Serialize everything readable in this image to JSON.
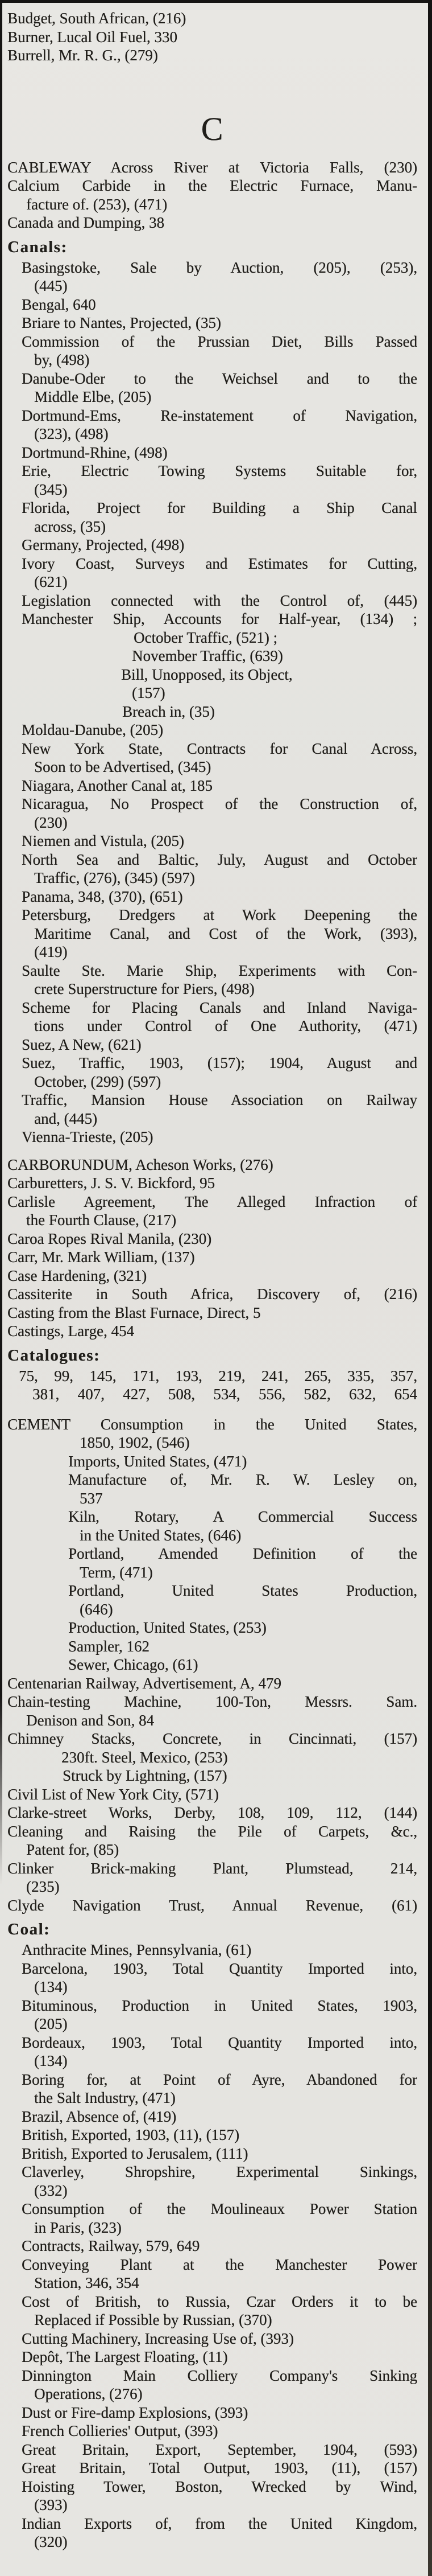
{
  "page": {
    "background": "#e5e4e0",
    "ink": "#201e1a",
    "edge_color": "#161514"
  },
  "blocks": [
    {
      "type": "entries",
      "name": "index-entries-bu",
      "lines": [
        {
          "i": 13,
          "t": "Budget, South African, (216)"
        },
        {
          "i": 13,
          "t": "Burner, Lucal Oil Fuel, 330"
        },
        {
          "i": 13,
          "t": "Burrell, Mr. R. G., (279)"
        }
      ]
    },
    {
      "type": "letter",
      "text": "C"
    },
    {
      "type": "entries",
      "name": "index-entries-ca",
      "lines": [
        {
          "i": 13,
          "t": "CABLEWAY Across River at Victoria Falls, (230)",
          "j": 1
        },
        {
          "i": 13,
          "t": "Calcium Carbide in the Electric Furnace, Manu-",
          "j": 1
        },
        {
          "i": 46,
          "t": "facture of. (253), (471)"
        },
        {
          "i": 13,
          "t": "Canada and Dumping, 38"
        }
      ]
    },
    {
      "type": "subheading",
      "text": "Canals:"
    },
    {
      "type": "entries",
      "name": "canals-entries",
      "lines": [
        {
          "i": 38,
          "t": "Basingstoke, Sale by Auction, (205), (253),",
          "j": 1
        },
        {
          "i": 60,
          "t": "(445)"
        },
        {
          "i": 38,
          "t": "Bengal, 640"
        },
        {
          "i": 38,
          "t": "Briare to Nantes, Projected, (35)"
        },
        {
          "i": 38,
          "t": "Commission of the Prussian Diet, Bills Passed",
          "j": 1
        },
        {
          "i": 60,
          "t": "by, (498)"
        },
        {
          "i": 38,
          "t": "Danube-Oder to the Weichsel and to the",
          "j": 1
        },
        {
          "i": 60,
          "t": "Middle Elbe, (205)"
        },
        {
          "i": 38,
          "t": "Dortmund-Ems, Re-instatement of Navigation,",
          "j": 1
        },
        {
          "i": 60,
          "t": "(323), (498)"
        },
        {
          "i": 38,
          "t": "Dortmund-Rhine, (498)"
        },
        {
          "i": 38,
          "t": "Erie, Electric Towing Systems Suitable for,",
          "j": 1
        },
        {
          "i": 60,
          "t": "(345)"
        },
        {
          "i": 38,
          "t": "Florida, Project for Building a Ship Canal",
          "j": 1
        },
        {
          "i": 60,
          "t": "across, (35)"
        },
        {
          "i": 38,
          "t": "Germany, Projected, (498)"
        },
        {
          "i": 38,
          "t": "Ivory Coast, Surveys and Estimates for Cutting,",
          "j": 1
        },
        {
          "i": 60,
          "t": "(621)"
        },
        {
          "i": 38,
          "t": "Legislation connected with the Control of, (445)",
          "j": 1
        },
        {
          "i": 38,
          "t": "Manchester Ship, Accounts for Half-year, (134) ;",
          "j": 1
        },
        {
          "i": 235,
          "t": "October Traffic, (521) ;"
        },
        {
          "i": 232,
          "t": "November Traffic, (639)"
        },
        {
          "i": 213,
          "t": "Bill, Unopposed, its Object,"
        },
        {
          "i": 232,
          "t": "(157)"
        },
        {
          "i": 215,
          "t": "Breach in, (35)"
        },
        {
          "i": 38,
          "t": "Moldau-Danube, (205)"
        },
        {
          "i": 38,
          "t": "New York State, Contracts for Canal Across,",
          "j": 1
        },
        {
          "i": 60,
          "t": "Soon to be Advertised, (345)"
        },
        {
          "i": 38,
          "t": "Niagara, Another Canal at, 185"
        },
        {
          "i": 38,
          "t": "Nicaragua, No Prospect of the Construction of,",
          "j": 1
        },
        {
          "i": 60,
          "t": "(230)"
        },
        {
          "i": 38,
          "t": "Niemen and Vistula, (205)"
        },
        {
          "i": 38,
          "t": "North Sea and Baltic, July, August and October",
          "j": 1
        },
        {
          "i": 60,
          "t": "Traffic, (276), (345) (597)"
        },
        {
          "i": 38,
          "t": "Panama, 348, (370), (651)"
        },
        {
          "i": 38,
          "t": "Petersburg, Dredgers at Work Deepening the",
          "j": 1
        },
        {
          "i": 60,
          "t": "Maritime Canal, and Cost of the Work, (393),",
          "j": 1
        },
        {
          "i": 60,
          "t": "(419)"
        },
        {
          "i": 38,
          "t": "Saulte Ste. Marie Ship, Experiments with Con-",
          "j": 1
        },
        {
          "i": 60,
          "t": "crete Superstructure for Piers, (498)"
        },
        {
          "i": 38,
          "t": "Scheme for Placing Canals and Inland Naviga-",
          "j": 1
        },
        {
          "i": 60,
          "t": "tions under Control of One Authority, (471)",
          "j": 1
        },
        {
          "i": 38,
          "t": "Suez, A New, (621)"
        },
        {
          "i": 38,
          "t": "Suez, Traffic, 1903, (157); 1904, August and",
          "j": 1
        },
        {
          "i": 60,
          "t": "October, (299) (597)"
        },
        {
          "i": 38,
          "t": "Traffic, Mansion House Association on Railway",
          "j": 1
        },
        {
          "i": 60,
          "t": "and, (445)"
        },
        {
          "i": 38,
          "t": "Vienna-Trieste, (205)"
        }
      ]
    },
    {
      "type": "gap",
      "h": 16
    },
    {
      "type": "entries",
      "name": "carborundum-entries",
      "lines": [
        {
          "i": 13,
          "t": "CARBORUNDUM, Acheson Works, (276)"
        },
        {
          "i": 13,
          "t": "Carburetters, J. S. V. Bickford, 95"
        },
        {
          "i": 13,
          "t": "Carlisle Agreement, The Alleged Infraction of",
          "j": 1
        },
        {
          "i": 46,
          "t": "the Fourth Clause, (217)"
        },
        {
          "i": 13,
          "t": "Caroa Ropes Rival Manila, (230)"
        },
        {
          "i": 13,
          "t": "Carr, Mr. Mark William, (137)"
        },
        {
          "i": 13,
          "t": "Case Hardening, (321)"
        },
        {
          "i": 13,
          "t": "Cassiterite in South Africa, Discovery of, (216)",
          "j": 1
        },
        {
          "i": 13,
          "t": "Casting from the Blast Furnace, Direct, 5"
        },
        {
          "i": 13,
          "t": "Castings, Large, 454"
        }
      ]
    },
    {
      "type": "subheading",
      "text": "Catalogues:"
    },
    {
      "type": "entries",
      "name": "catalogues-numbers",
      "lines": [
        {
          "i": 33,
          "t": "75, 99, 145, 171, 193, 219, 241, 265, 335, 357,",
          "j": 1
        },
        {
          "i": 57,
          "t": "381, 407, 427, 508, 534, 556, 582, 632, 654",
          "j": 1
        }
      ]
    },
    {
      "type": "gap",
      "h": 20
    },
    {
      "type": "entries",
      "name": "cement-entries",
      "lines": [
        {
          "i": 13,
          "t": "CEMENT Consumption in the United States,",
          "j": 1
        },
        {
          "i": 140,
          "t": "1850, 1902, (546)"
        },
        {
          "i": 120,
          "t": "Imports, United States, (471)"
        },
        {
          "i": 120,
          "t": "Manufacture of, Mr. R. W. Lesley on,",
          "j": 1
        },
        {
          "i": 140,
          "t": "537"
        },
        {
          "i": 120,
          "t": "Kiln, Rotary, A Commercial Success",
          "j": 1
        },
        {
          "i": 140,
          "t": "in the United States, (646)"
        },
        {
          "i": 120,
          "t": "Portland, Amended Definition of the",
          "j": 1
        },
        {
          "i": 140,
          "t": "Term, (471)"
        },
        {
          "i": 120,
          "t": "Portland, United States Production,",
          "j": 1
        },
        {
          "i": 140,
          "t": "(646)"
        },
        {
          "i": 120,
          "t": "Production, United States, (253)"
        },
        {
          "i": 120,
          "t": "Sampler, 162"
        },
        {
          "i": 120,
          "t": "Sewer, Chicago, (61)"
        }
      ]
    },
    {
      "type": "entries",
      "name": "centenarian-entries",
      "lines": [
        {
          "i": 13,
          "t": "Centenarian Railway, Advertisement, A, 479"
        },
        {
          "i": 13,
          "t": "Chain-testing Machine, 100-Ton, Messrs. Sam.",
          "j": 1
        },
        {
          "i": 46,
          "t": "Denison and Son, 84"
        },
        {
          "i": 13,
          "t": "Chimney Stacks, Concrete, in Cincinnati, (157)",
          "j": 1
        },
        {
          "i": 108,
          "t": "230ft. Steel, Mexico, (253)"
        },
        {
          "i": 110,
          "t": "Struck by Lightning, (157)"
        },
        {
          "i": 13,
          "t": "Civil List of New York City, (571)"
        },
        {
          "i": 13,
          "t": "Clarke-street Works, Derby, 108, 109, 112, (144)",
          "j": 1
        },
        {
          "i": 13,
          "t": "Cleaning and Raising the Pile of Carpets, &c.,",
          "j": 1
        },
        {
          "i": 46,
          "t": "Patent for, (85)"
        },
        {
          "i": 13,
          "t": "Clinker Brick-making Plant, Plumstead, 214,",
          "j": 1
        },
        {
          "i": 46,
          "t": "(235)"
        },
        {
          "i": 13,
          "t": "Clyde Navigation Trust, Annual Revenue, (61)",
          "j": 1
        }
      ]
    },
    {
      "type": "subheading",
      "text": "Coal:"
    },
    {
      "type": "entries",
      "name": "coal-entries",
      "lines": [
        {
          "i": 38,
          "t": "Anthracite Mines, Pennsylvania, (61)"
        },
        {
          "i": 38,
          "t": "Barcelona, 1903, Total Quantity Imported into,",
          "j": 1
        },
        {
          "i": 60,
          "t": "(134)"
        },
        {
          "i": 38,
          "t": "Bituminous, Production in United States, 1903,",
          "j": 1
        },
        {
          "i": 60,
          "t": "(205)"
        },
        {
          "i": 38,
          "t": "Bordeaux, 1903, Total Quantity Imported into,",
          "j": 1
        },
        {
          "i": 60,
          "t": "(134)"
        },
        {
          "i": 38,
          "t": "Boring for, at Point of Ayre, Abandoned for",
          "j": 1
        },
        {
          "i": 60,
          "t": "the Salt Industry, (471)"
        },
        {
          "i": 38,
          "t": "Brazil, Absence of, (419)"
        },
        {
          "i": 38,
          "t": "British, Exported, 1903, (11), (157)"
        },
        {
          "i": 38,
          "t": "British, Exported to Jerusalem, (111)"
        },
        {
          "i": 38,
          "t": "Claverley, Shropshire, Experimental Sinkings,",
          "j": 1
        },
        {
          "i": 60,
          "t": "(332)"
        },
        {
          "i": 38,
          "t": "Consumption of the Moulineaux Power Station",
          "j": 1
        },
        {
          "i": 60,
          "t": "in Paris, (323)"
        },
        {
          "i": 38,
          "t": "Contracts, Railway, 579, 649"
        },
        {
          "i": 38,
          "t": "Conveying Plant at the Manchester Power",
          "j": 1
        },
        {
          "i": 60,
          "t": "Station, 346, 354"
        },
        {
          "i": 38,
          "t": "Cost of British, to Russia, Czar Orders it to be",
          "j": 1
        },
        {
          "i": 60,
          "t": "Replaced if Possible by Russian, (370)"
        },
        {
          "i": 38,
          "t": "Cutting Machinery, Increasing Use of, (393)"
        },
        {
          "i": 38,
          "t": "Depôt, The Largest Floating, (11)"
        },
        {
          "i": 38,
          "t": "Dinnington Main Colliery Company's Sinking",
          "j": 1
        },
        {
          "i": 60,
          "t": "Operations, (276)"
        },
        {
          "i": 38,
          "t": "Dust or Fire-damp Explosions, (393)"
        },
        {
          "i": 38,
          "t": "French Collieries' Output, (393)"
        },
        {
          "i": 38,
          "t": "Great Britain, Export, September, 1904, (593)",
          "j": 1
        },
        {
          "i": 38,
          "t": "Great Britain, Total Output, 1903, (11), (157)",
          "j": 1
        },
        {
          "i": 38,
          "t": "Hoisting Tower, Boston, Wrecked by Wind,",
          "j": 1
        },
        {
          "i": 60,
          "t": "(393)"
        },
        {
          "i": 38,
          "t": "Indian Exports of, from the United Kingdom,",
          "j": 1
        },
        {
          "i": 60,
          "t": "(320)"
        }
      ]
    }
  ]
}
